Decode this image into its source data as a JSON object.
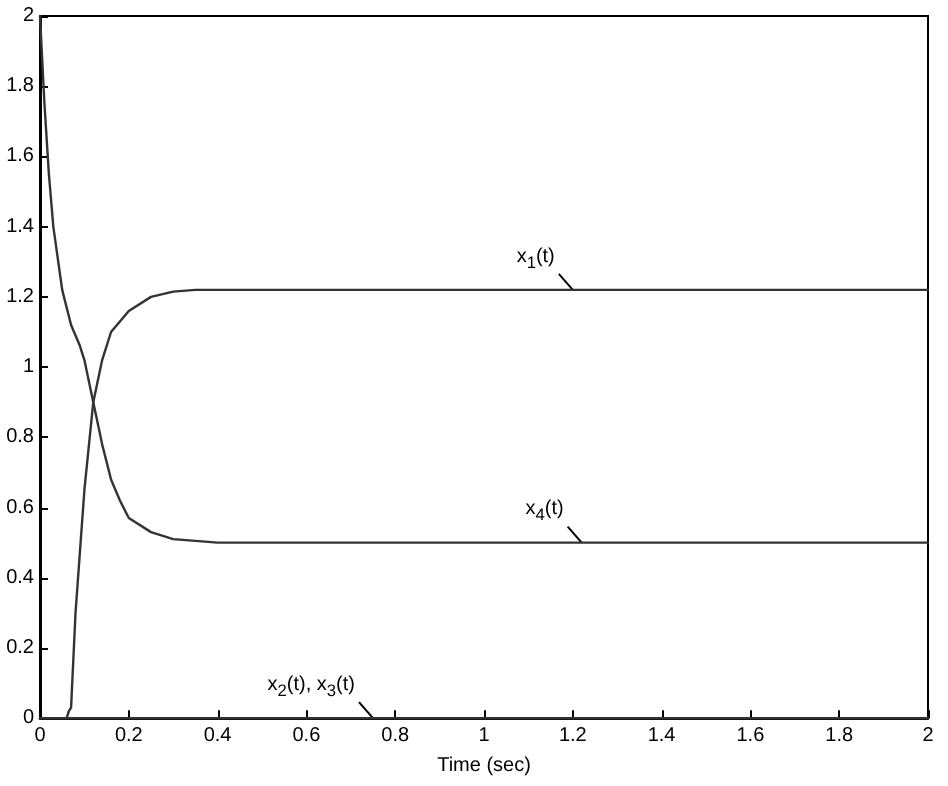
{
  "chart_data": {
    "type": "line",
    "xlabel": "Time (sec)",
    "xlim": [
      0,
      2
    ],
    "xticks": [
      0,
      0.2,
      0.4,
      0.6,
      0.8,
      1,
      1.2,
      1.4,
      1.6,
      1.8,
      2
    ],
    "ylim": [
      0,
      2
    ],
    "yticks": [
      0,
      0.2,
      0.4,
      0.6,
      0.8,
      1,
      1.2,
      1.4,
      1.6,
      1.8,
      2
    ],
    "grid": false,
    "marker": "none",
    "line_style": "solid",
    "series": [
      {
        "color": "#333333",
        "x": [
          0,
          0.05,
          0.06,
          0.065,
          0.07,
          0.08,
          0.1,
          0.12,
          0.14,
          0.16,
          0.2,
          0.25,
          0.3,
          0.35,
          0.4,
          0.5,
          1,
          1.5,
          2
        ],
        "values": [
          0,
          0,
          0,
          0.02,
          0.03,
          0.3,
          0.65,
          0.9,
          1.02,
          1.1,
          1.16,
          1.2,
          1.215,
          1.22,
          1.22,
          1.22,
          1.22,
          1.22,
          1.22
        ]
      },
      {
        "color": "#333333",
        "x": [
          0,
          0.01,
          0.02,
          0.03,
          0.05,
          0.07,
          0.09,
          0.1,
          0.12,
          0.14,
          0.16,
          0.18,
          0.2,
          0.25,
          0.3,
          0.4,
          0.5,
          1,
          2
        ],
        "values": [
          2,
          1.75,
          1.55,
          1.4,
          1.22,
          1.12,
          1.06,
          1.02,
          0.9,
          0.78,
          0.68,
          0.62,
          0.57,
          0.53,
          0.51,
          0.5,
          0.5,
          0.5,
          0.5
        ]
      },
      {
        "color": "#333333",
        "x": [
          0,
          2
        ],
        "values": [
          0,
          0
        ]
      },
      {
        "color": "#333333",
        "x": [
          0,
          2
        ],
        "values": [
          0,
          0
        ]
      }
    ],
    "annotations": [
      {
        "text": "x$_{1}$(t)",
        "x": 1.2,
        "y": 1.22
      },
      {
        "text": "x$_{4}$(t)",
        "x": 1.22,
        "y": 0.5
      },
      {
        "text": "x$_{2}$(t), x$_{3}$(t)",
        "x": 0.75,
        "y": 0
      }
    ]
  }
}
